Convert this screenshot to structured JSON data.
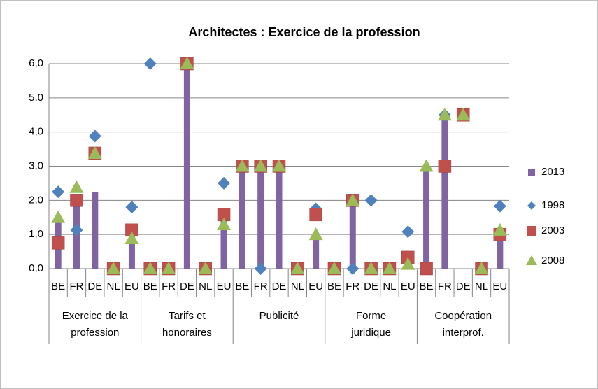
{
  "chart_data": {
    "type": "bar",
    "title": "Architectes : Exercice de la profession",
    "categories": [
      "BE",
      "FR",
      "DE",
      "NL",
      "EU",
      "BE",
      "FR",
      "DE",
      "NL",
      "EU",
      "BE",
      "FR",
      "DE",
      "NL",
      "EU",
      "BE",
      "FR",
      "DE",
      "NL",
      "EU",
      "BE",
      "FR",
      "DE",
      "NL",
      "EU"
    ],
    "groups": [
      "Exercice de la\nprofession",
      "Tarifs et\nhonoraires",
      "Publicité",
      "Forme\njuridique",
      "Coopération\ninterprof."
    ],
    "series": [
      {
        "name": "2013",
        "color": "#8064a2",
        "marker": "bar",
        "values": [
          1.5,
          2.0,
          2.25,
          0,
          1.0,
          0,
          0,
          6.0,
          0,
          1.5,
          3.0,
          3.0,
          3.0,
          0,
          1.0,
          0,
          2.0,
          0,
          0,
          0,
          3.0,
          4.5,
          0,
          0,
          1.0
        ]
      },
      {
        "name": "1998",
        "color": "#4f81bd",
        "marker": "diamond",
        "values": [
          2.25,
          1.13,
          3.88,
          0,
          1.8,
          6.0,
          0,
          6.0,
          0,
          2.5,
          3.0,
          0,
          3.0,
          0,
          1.75,
          0,
          0,
          2.0,
          0,
          1.08,
          0,
          4.5,
          4.5,
          0,
          1.83
        ]
      },
      {
        "name": "2003",
        "color": "#c0504d",
        "marker": "square",
        "values": [
          0.75,
          2.0,
          3.38,
          0,
          1.13,
          0,
          0,
          6.0,
          0,
          1.58,
          3.0,
          3.0,
          3.0,
          0,
          1.58,
          0,
          2.0,
          0,
          0,
          0.33,
          0,
          3.0,
          4.5,
          0,
          1.0
        ]
      },
      {
        "name": "2008",
        "color": "#9bbb59",
        "marker": "triangle",
        "values": [
          1.5,
          2.38,
          3.38,
          0,
          0.88,
          0,
          0,
          6.0,
          0,
          1.29,
          3.0,
          3.0,
          3.0,
          0,
          1.0,
          0,
          2.0,
          0,
          0,
          0.13,
          3.0,
          4.5,
          4.5,
          0,
          1.13
        ]
      }
    ],
    "ylim": [
      0,
      6
    ],
    "yticks": [
      {
        "value": 0,
        "label": "0,0"
      },
      {
        "value": 1,
        "label": "1,0"
      },
      {
        "value": 2,
        "label": "2,0"
      },
      {
        "value": 3,
        "label": "3,0"
      },
      {
        "value": 4,
        "label": "4,0"
      },
      {
        "value": 5,
        "label": "5,0"
      },
      {
        "value": 6,
        "label": "6,0"
      }
    ],
    "grid": true,
    "legend": "right"
  }
}
